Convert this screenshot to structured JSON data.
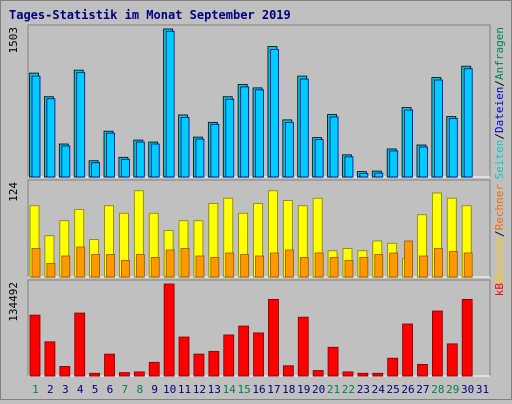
{
  "chart_data": {
    "type": "bar",
    "title": "Tages-Statistik im Monat September 2019",
    "categories": [
      "1",
      "2",
      "3",
      "4",
      "5",
      "6",
      "7",
      "8",
      "9",
      "10",
      "11",
      "12",
      "13",
      "14",
      "15",
      "16",
      "17",
      "18",
      "19",
      "20",
      "21",
      "22",
      "23",
      "24",
      "25",
      "26",
      "27",
      "28",
      "29",
      "30",
      "31"
    ],
    "weekend_days": [
      "1",
      "7",
      "8",
      "14",
      "15",
      "21",
      "22",
      "28",
      "29"
    ],
    "panels": [
      {
        "id": "hits-files-pages",
        "max_label": "1503",
        "ymax": 1503,
        "series": [
          {
            "name": "Anfragen",
            "values": [
              1055,
              815,
              335,
              1085,
              165,
              465,
              200,
              375,
              355,
              1503,
              630,
              405,
              555,
              815,
              940,
              905,
              1325,
              580,
              1025,
              400,
              635,
              225,
              55,
              60,
              285,
              705,
              325,
              1010,
              615,
              1125,
              0
            ]
          },
          {
            "name": "Dateien",
            "values": [
              1035,
              805,
              325,
              1070,
              155,
              455,
              190,
              365,
              345,
              1490,
              615,
              395,
              545,
              800,
              925,
              895,
              1305,
              565,
              1005,
              390,
              620,
              215,
              45,
              50,
              275,
              690,
              315,
              995,
              605,
              1110,
              0
            ]
          }
        ]
      },
      {
        "id": "pages-visits",
        "max_label": "124",
        "ymax": 124,
        "series": [
          {
            "name": "Seiten",
            "values": [
              95,
              55,
              75,
              90,
              50,
              95,
              85,
              115,
              85,
              62,
              75,
              75,
              98,
              105,
              85,
              98,
              115,
              102,
              95,
              105,
              35,
              38,
              35,
              48,
              45,
              25,
              83,
              112,
              105,
              95,
              0
            ]
          },
          {
            "name": "Besuche",
            "values": [
              38,
              18,
              28,
              40,
              30,
              30,
              22,
              30,
              26,
              36,
              38,
              28,
              26,
              32,
              30,
              28,
              32,
              36,
              26,
              32,
              26,
              22,
              26,
              30,
              32,
              48,
              28,
              38,
              34,
              32,
              0
            ]
          }
        ]
      },
      {
        "id": "kb",
        "max_label": "134492",
        "ymax": 134492,
        "series": [
          {
            "name": "kB",
            "values": [
              89000,
              50000,
              14000,
              92000,
              4000,
              32000,
              5000,
              6000,
              20000,
              134492,
              57000,
              32000,
              36000,
              60000,
              73000,
              63000,
              112000,
              15000,
              86000,
              8000,
              42000,
              6000,
              4000,
              4000,
              26000,
              76000,
              17000,
              95000,
              47000,
              112000,
              0
            ]
          }
        ]
      }
    ],
    "colors": {
      "Anfragen": "#00cccc",
      "Dateien": "#00ccff",
      "Seiten": "#ffff00",
      "Besuche": "#ff9900",
      "kB": "#ff0000",
      "title": "#000080",
      "weekend": "#00804f",
      "weekday": "#000080"
    },
    "right_labels": {
      "top": [
        "Seiten",
        "/",
        "Dateien",
        "/",
        "Anfragen"
      ],
      "middle": [
        "Besuche",
        "/",
        "Rechner"
      ],
      "bottom": [
        "kB"
      ]
    }
  }
}
